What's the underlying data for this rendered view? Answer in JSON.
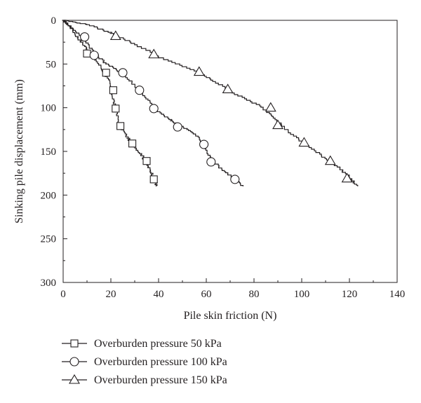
{
  "chart_data": {
    "type": "scatter",
    "title": "",
    "xlabel": "Pile skin friction (N)",
    "ylabel": "Sinking pile displacement (mm)",
    "xlim": [
      0,
      140
    ],
    "ylim": [
      0,
      300
    ],
    "y_inverted": true,
    "x_ticks": [
      0,
      20,
      40,
      60,
      80,
      100,
      120,
      140
    ],
    "y_ticks": [
      0,
      50,
      100,
      150,
      200,
      250,
      300
    ],
    "grid": false,
    "legend_position": "bottom-left-outside",
    "series": [
      {
        "name": "Overburden pressure 50 kPa",
        "marker": "square",
        "color": "#231f20",
        "markers": [
          [
            10,
            38
          ],
          [
            18,
            60
          ],
          [
            21,
            80
          ],
          [
            22,
            101
          ],
          [
            24,
            121
          ],
          [
            29,
            141
          ],
          [
            35,
            161
          ],
          [
            38,
            182
          ]
        ],
        "curve": [
          [
            0,
            0
          ],
          [
            3,
            8
          ],
          [
            6,
            20
          ],
          [
            9,
            30
          ],
          [
            12,
            40
          ],
          [
            16,
            55
          ],
          [
            19,
            70
          ],
          [
            21,
            90
          ],
          [
            22,
            105
          ],
          [
            24,
            122
          ],
          [
            27,
            135
          ],
          [
            30,
            145
          ],
          [
            33,
            155
          ],
          [
            35,
            165
          ],
          [
            37,
            175
          ],
          [
            39,
            185
          ],
          [
            39,
            190
          ]
        ]
      },
      {
        "name": "Overburden pressure 100 kPa",
        "marker": "circle",
        "color": "#231f20",
        "markers": [
          [
            9,
            19
          ],
          [
            13,
            40
          ],
          [
            25,
            60
          ],
          [
            32,
            80
          ],
          [
            38,
            101
          ],
          [
            48,
            122
          ],
          [
            59,
            142
          ],
          [
            62,
            162
          ],
          [
            72,
            182
          ]
        ],
        "curve": [
          [
            0,
            0
          ],
          [
            4,
            10
          ],
          [
            9,
            22
          ],
          [
            13,
            38
          ],
          [
            18,
            50
          ],
          [
            24,
            60
          ],
          [
            30,
            75
          ],
          [
            35,
            90
          ],
          [
            39,
            103
          ],
          [
            45,
            115
          ],
          [
            52,
            125
          ],
          [
            57,
            135
          ],
          [
            59,
            145
          ],
          [
            62,
            160
          ],
          [
            67,
            172
          ],
          [
            72,
            182
          ],
          [
            75,
            190
          ]
        ]
      },
      {
        "name": "Overburden pressure 150 kPa",
        "marker": "triangle",
        "color": "#231f20",
        "markers": [
          [
            22,
            18
          ],
          [
            38,
            39
          ],
          [
            57,
            59
          ],
          [
            69,
            79
          ],
          [
            87,
            100
          ],
          [
            90,
            120
          ],
          [
            101,
            140
          ],
          [
            112,
            161
          ],
          [
            119,
            181
          ]
        ],
        "curve": [
          [
            0,
            0
          ],
          [
            10,
            5
          ],
          [
            20,
            15
          ],
          [
            30,
            28
          ],
          [
            42,
            45
          ],
          [
            55,
            58
          ],
          [
            63,
            70
          ],
          [
            72,
            85
          ],
          [
            82,
            98
          ],
          [
            88,
            110
          ],
          [
            93,
            125
          ],
          [
            100,
            140
          ],
          [
            108,
            155
          ],
          [
            115,
            168
          ],
          [
            120,
            180
          ],
          [
            123,
            190
          ]
        ]
      }
    ]
  }
}
